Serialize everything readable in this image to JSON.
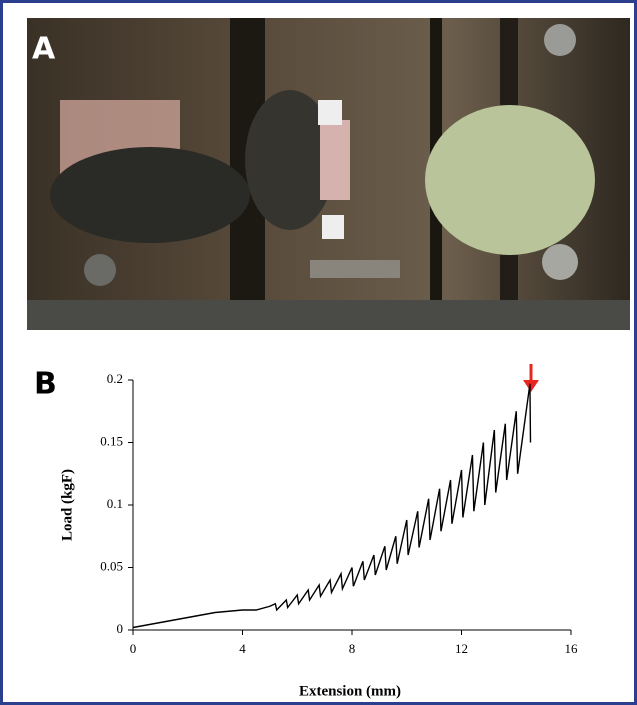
{
  "panel_labels": [
    "A",
    "B"
  ],
  "chart_data": {
    "type": "line",
    "xlabel": "Extension (mm)",
    "ylabel": "Load (kgF)",
    "xlim": [
      0,
      16
    ],
    "xticks": [
      0,
      4,
      8,
      12,
      16
    ],
    "ylim": [
      0,
      0.2
    ],
    "yticks": [
      0,
      0.05,
      0.1,
      0.15,
      0.2
    ],
    "grid": false,
    "color": "#000000",
    "x": [
      0,
      0.5,
      1,
      1.5,
      2,
      2.5,
      3,
      3.5,
      4,
      4.5,
      5,
      5.2,
      5.25,
      5.6,
      5.65,
      6.0,
      6.05,
      6.4,
      6.45,
      6.8,
      6.85,
      7.2,
      7.25,
      7.6,
      7.65,
      8.0,
      8.05,
      8.4,
      8.45,
      8.8,
      8.85,
      9.2,
      9.25,
      9.6,
      9.65,
      10.0,
      10.05,
      10.4,
      10.45,
      10.8,
      10.85,
      11.2,
      11.25,
      11.6,
      11.65,
      12.0,
      12.05,
      12.4,
      12.45,
      12.8,
      12.85,
      13.2,
      13.25,
      13.6,
      13.65,
      14.0,
      14.05,
      14.5,
      14.52
    ],
    "values": [
      0.002,
      0.004,
      0.006,
      0.008,
      0.01,
      0.012,
      0.014,
      0.015,
      0.016,
      0.016,
      0.019,
      0.021,
      0.016,
      0.024,
      0.018,
      0.028,
      0.021,
      0.032,
      0.024,
      0.036,
      0.027,
      0.04,
      0.03,
      0.045,
      0.033,
      0.05,
      0.035,
      0.055,
      0.04,
      0.06,
      0.044,
      0.067,
      0.048,
      0.075,
      0.053,
      0.088,
      0.06,
      0.095,
      0.066,
      0.105,
      0.072,
      0.113,
      0.079,
      0.12,
      0.085,
      0.128,
      0.09,
      0.14,
      0.095,
      0.15,
      0.1,
      0.16,
      0.11,
      0.165,
      0.12,
      0.175,
      0.125,
      0.197,
      0.15
    ]
  }
}
